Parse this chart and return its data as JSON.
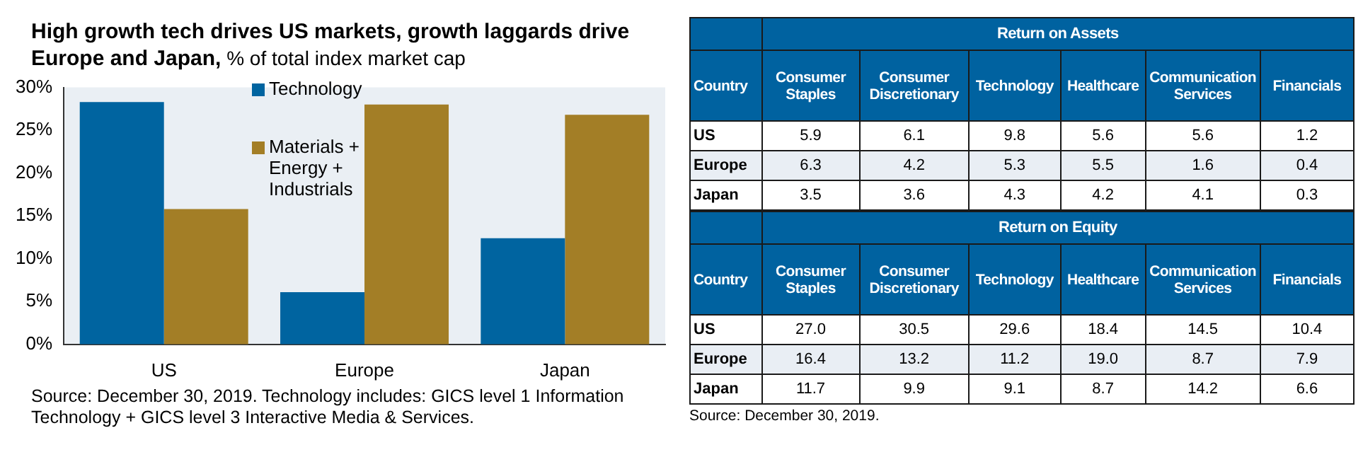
{
  "chart_data": [
    {
      "type": "bar",
      "title": "High growth tech drives US markets, growth laggards drive Europe and Japan,",
      "subtitle": "% of total index market cap",
      "categories": [
        "US",
        "Europe",
        "Japan"
      ],
      "series": [
        {
          "name": "Technology",
          "color": "#0064a0",
          "values": [
            28.3,
            6.1,
            12.4
          ]
        },
        {
          "name": "Materials + Energy + Industrials",
          "color": "#a37e26",
          "values": [
            15.8,
            28.0,
            26.8
          ]
        }
      ],
      "ylim": [
        0,
        30
      ],
      "yticks": [
        {
          "value": 0,
          "label": "0%"
        },
        {
          "value": 5,
          "label": "5%"
        },
        {
          "value": 10,
          "label": "10%"
        },
        {
          "value": 15,
          "label": "15%"
        },
        {
          "value": 20,
          "label": "20%"
        },
        {
          "value": 25,
          "label": "25%"
        },
        {
          "value": 30,
          "label": "30%"
        }
      ],
      "grid": false,
      "legend": "top",
      "annotations": [
        "Source: December 30, 2019. Technology includes: GICS level 1 Information Technology + GICS level 3 Interactive Media & Services."
      ]
    },
    {
      "type": "heatmap",
      "title": "Return on Assets",
      "ylabel": "Country",
      "categories": [
        "Consumer Staples",
        "Consumer Discretionary",
        "Technology",
        "Healthcare",
        "Communication Services",
        "Financials"
      ],
      "y_categories": [
        "US",
        "Europe",
        "Japan"
      ],
      "cells": [
        [
          5.9,
          6.1,
          9.8,
          5.6,
          5.6,
          1.2
        ],
        [
          6.3,
          4.2,
          5.3,
          5.5,
          1.6,
          0.4
        ],
        [
          3.5,
          3.6,
          4.3,
          4.2,
          4.1,
          0.3
        ]
      ],
      "cell_labels": [
        [
          "5.9",
          "6.1",
          "9.8",
          "5.6",
          "5.6",
          "1.2"
        ],
        [
          "6.3",
          "4.2",
          "5.3",
          "5.5",
          "1.6",
          "0.4"
        ],
        [
          "3.5",
          "3.6",
          "4.3",
          "4.2",
          "4.1",
          "0.3"
        ]
      ],
      "data_labels": true
    },
    {
      "type": "heatmap",
      "title": "Return on Equity",
      "ylabel": "Country",
      "categories": [
        "Consumer Staples",
        "Consumer Discretionary",
        "Technology",
        "Healthcare",
        "Communication Services",
        "Financials"
      ],
      "y_categories": [
        "US",
        "Europe",
        "Japan"
      ],
      "cells": [
        [
          27.0,
          30.5,
          29.6,
          18.4,
          14.5,
          10.4
        ],
        [
          16.4,
          13.2,
          11.2,
          19.0,
          8.7,
          7.9
        ],
        [
          11.7,
          9.9,
          9.1,
          8.7,
          14.2,
          6.6
        ]
      ],
      "cell_labels": [
        [
          "27.0",
          "30.5",
          "29.6",
          "18.4",
          "14.5",
          "10.4"
        ],
        [
          "16.4",
          "13.2",
          "11.2",
          "19.0",
          "8.7",
          "7.9"
        ],
        [
          "11.7",
          "9.9",
          "9.1",
          "8.7",
          "14.2",
          "6.6"
        ]
      ],
      "data_labels": true,
      "annotations": [
        "Source: December 30, 2019."
      ]
    }
  ]
}
